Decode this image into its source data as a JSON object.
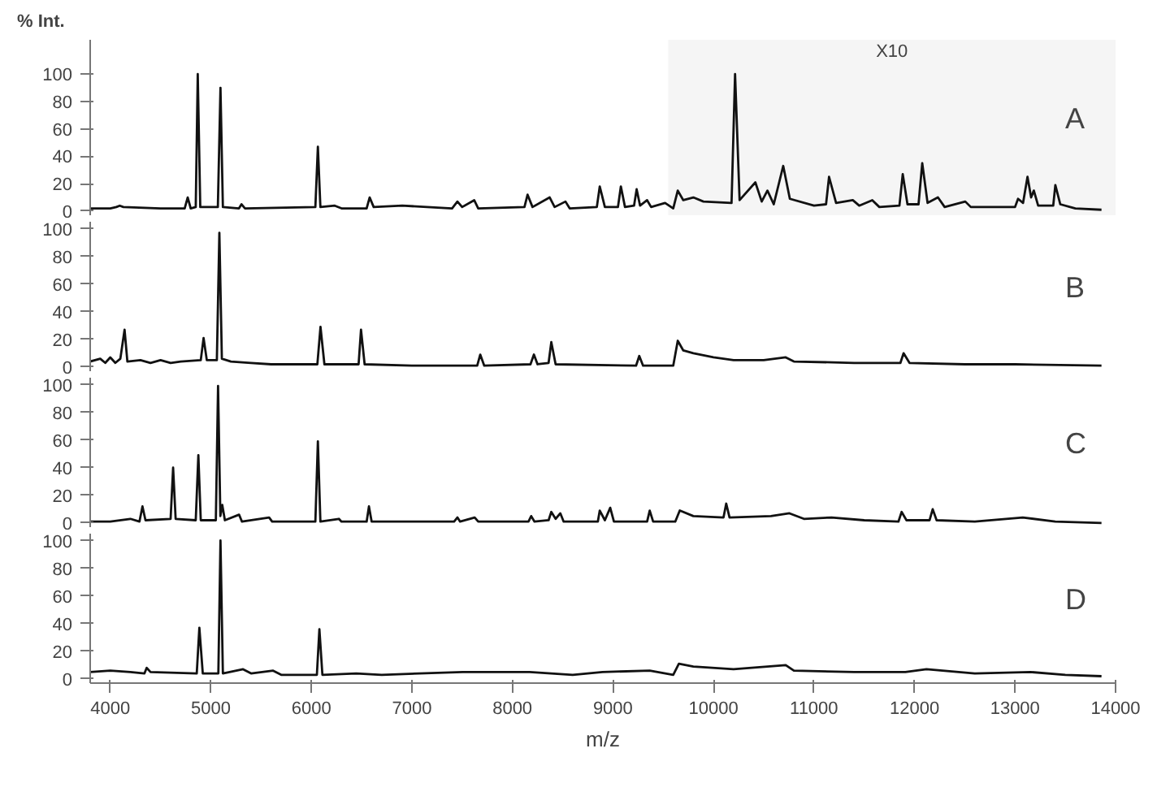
{
  "chart_data": [
    {
      "type": "line",
      "ylabel": "% Int.",
      "annotations": [
        "A"
      ],
      "xlim": [
        3800,
        14000
      ],
      "ylim": [
        -3,
        125
      ],
      "yticks": [
        0,
        20,
        40,
        60,
        80,
        100
      ],
      "tick_labels": "y",
      "bands": [
        {
          "axis": "x",
          "from": 9550,
          "to": 14000,
          "label": "X10"
        }
      ],
      "x": [
        3800,
        4000,
        4060,
        4094,
        4130,
        4500,
        4740,
        4770,
        4800,
        4850,
        4870,
        4895,
        5070,
        5096,
        5120,
        5280,
        5305,
        5340,
        6040,
        6065,
        6090,
        6233,
        6300,
        6550,
        6580,
        6620,
        6904,
        7400,
        7453,
        7500,
        7620,
        7660,
        8120,
        8151,
        8200,
        8371,
        8420,
        8528,
        8570,
        8840,
        8869,
        8920,
        9050,
        9079,
        9120,
        9210,
        9236,
        9270,
        9340,
        9380,
        9519,
        9600,
        9645,
        9700,
        9800,
        9900,
        10180,
        10215,
        10260,
        10417,
        10480,
        10537,
        10600,
        10694,
        10760,
        11000,
        11120,
        11150,
        11220,
        11386,
        11450,
        11580,
        11650,
        11850,
        11883,
        11930,
        12040,
        12077,
        12130,
        12233,
        12300,
        12505,
        12560,
        13000,
        13030,
        13080,
        13124,
        13160,
        13187,
        13230,
        13380,
        13401,
        13450,
        13600,
        13860
      ],
      "series": [
        {
          "color": "#111111",
          "values": [
            2,
            2,
            3,
            4,
            3,
            2,
            2,
            10,
            2,
            3,
            100,
            3,
            3,
            90,
            3,
            2,
            5,
            2,
            3,
            47,
            3,
            4,
            2,
            2,
            10,
            3,
            4,
            2,
            7,
            3,
            8,
            2,
            3,
            12,
            3,
            10,
            3,
            7,
            2,
            3,
            18,
            3,
            3,
            18,
            3,
            4,
            16,
            4,
            8,
            3,
            6,
            2,
            15,
            8,
            10,
            7,
            6,
            100,
            8,
            21,
            7,
            15,
            5,
            33,
            9,
            4,
            5,
            25,
            6,
            8,
            4,
            8,
            3,
            4,
            27,
            5,
            5,
            35,
            6,
            10,
            3,
            7,
            3,
            3,
            9,
            6,
            25,
            10,
            15,
            4,
            4,
            19,
            5,
            2,
            1
          ]
        }
      ]
    },
    {
      "type": "line",
      "annotations": [
        "B"
      ],
      "xlim": [
        3800,
        14000
      ],
      "ylim": [
        -3,
        105
      ],
      "yticks": [
        0,
        20,
        40,
        60,
        80,
        100
      ],
      "tick_labels": "y",
      "x": [
        3800,
        3900,
        3950,
        4000,
        4050,
        4100,
        4142,
        4170,
        4300,
        4400,
        4500,
        4600,
        4700,
        4900,
        4928,
        4960,
        5060,
        5085,
        5110,
        5200,
        5400,
        5600,
        6060,
        6091,
        6130,
        6470,
        6494,
        6530,
        7000,
        7650,
        7680,
        7720,
        8180,
        8214,
        8250,
        8360,
        8387,
        8430,
        9230,
        9262,
        9300,
        9600,
        9645,
        9700,
        9800,
        10000,
        10200,
        10500,
        10719,
        10800,
        11400,
        11860,
        11891,
        11950,
        12500,
        13000,
        13860
      ],
      "series": [
        {
          "color": "#111111",
          "values": [
            4,
            6,
            3,
            7,
            3,
            6,
            27,
            4,
            5,
            3,
            5,
            3,
            4,
            5,
            21,
            5,
            5,
            97,
            6,
            4,
            3,
            2,
            2,
            29,
            2,
            2,
            27,
            2,
            1,
            1,
            9,
            1,
            2,
            9,
            2,
            3,
            18,
            2,
            1,
            8,
            1,
            1,
            19,
            12,
            10,
            7,
            5,
            5,
            7,
            4,
            3,
            3,
            10,
            3,
            2,
            2,
            1
          ]
        }
      ]
    },
    {
      "type": "line",
      "annotations": [
        "C"
      ],
      "xlim": [
        3800,
        14000
      ],
      "ylim": [
        -3,
        105
      ],
      "yticks": [
        0,
        20,
        40,
        60,
        80,
        100
      ],
      "tick_labels": "y",
      "x": [
        3800,
        4000,
        4200,
        4290,
        4320,
        4350,
        4600,
        4625,
        4650,
        4850,
        4876,
        4900,
        5050,
        5072,
        5095,
        5114,
        5140,
        5281,
        5310,
        5580,
        5610,
        6040,
        6065,
        6090,
        6274,
        6300,
        6550,
        6573,
        6600,
        7420,
        7453,
        7480,
        7625,
        7660,
        8160,
        8187,
        8220,
        8360,
        8387,
        8430,
        8477,
        8510,
        8850,
        8869,
        8920,
        8973,
        9010,
        9340,
        9366,
        9400,
        9620,
        9665,
        9800,
        10100,
        10127,
        10160,
        10572,
        10756,
        10900,
        11175,
        11500,
        11840,
        11872,
        11920,
        12150,
        12181,
        12220,
        12600,
        13077,
        13400,
        13860
      ],
      "series": [
        {
          "color": "#111111",
          "values": [
            1,
            1,
            3,
            1,
            12,
            2,
            3,
            40,
            3,
            2,
            49,
            2,
            2,
            99,
            5,
            13,
            2,
            6,
            1,
            4,
            1,
            1,
            59,
            1,
            3,
            1,
            1,
            12,
            1,
            1,
            4,
            1,
            4,
            1,
            1,
            5,
            1,
            2,
            8,
            3,
            7,
            1,
            1,
            9,
            2,
            11,
            1,
            1,
            9,
            1,
            1,
            9,
            5,
            4,
            14,
            4,
            5,
            7,
            3,
            4,
            2,
            1,
            8,
            2,
            2,
            10,
            2,
            1,
            4,
            1,
            0
          ]
        }
      ]
    },
    {
      "type": "line",
      "annotations": [
        "D"
      ],
      "xlabel": "m/z",
      "xlim": [
        3800,
        14000
      ],
      "xticks": [
        4000,
        5000,
        6000,
        7000,
        8000,
        9000,
        10000,
        11000,
        12000,
        13000,
        14000
      ],
      "ylim": [
        -3,
        105
      ],
      "yticks": [
        0,
        20,
        40,
        60,
        80,
        100
      ],
      "x": [
        3800,
        4000,
        4200,
        4340,
        4362,
        4400,
        4860,
        4886,
        4920,
        5075,
        5096,
        5120,
        5321,
        5400,
        5620,
        5700,
        6055,
        6080,
        6110,
        6447,
        6700,
        7506,
        7648,
        8172,
        8600,
        8896,
        9366,
        9600,
        9656,
        9800,
        10200,
        10719,
        10800,
        11400,
        11909,
        12119,
        12600,
        13155,
        13500,
        13860
      ],
      "series": [
        {
          "color": "#111111",
          "values": [
            5,
            6,
            5,
            4,
            8,
            5,
            4,
            37,
            4,
            4,
            100,
            4,
            7,
            4,
            6,
            3,
            3,
            36,
            3,
            4,
            3,
            5,
            5,
            5,
            3,
            5,
            6,
            3,
            11,
            9,
            7,
            10,
            6,
            5,
            5,
            7,
            4,
            5,
            3,
            2
          ]
        }
      ]
    }
  ]
}
